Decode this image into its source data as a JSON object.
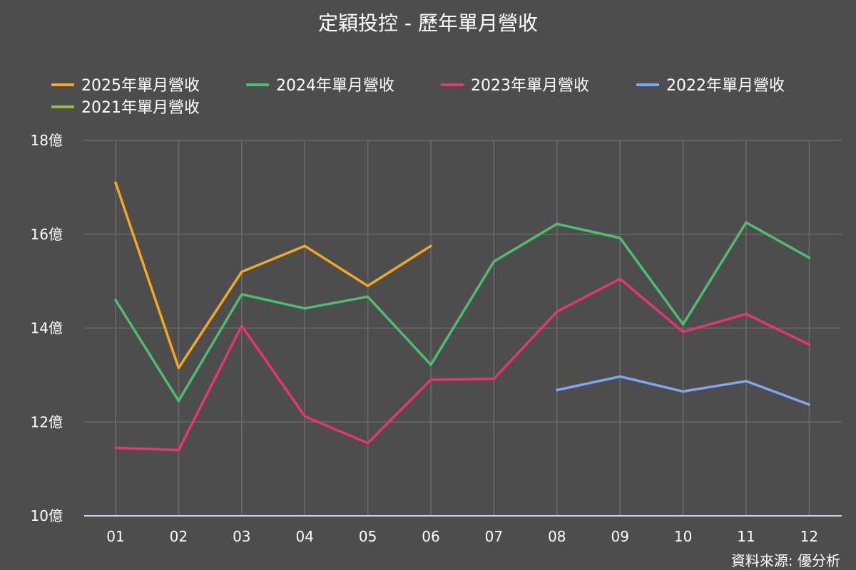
{
  "chart_data": {
    "type": "line",
    "title": "定穎投控 - 歷年單月營收",
    "source": "資料來源: 優分析",
    "categories": [
      "01",
      "02",
      "03",
      "04",
      "05",
      "06",
      "07",
      "08",
      "09",
      "10",
      "11",
      "12"
    ],
    "y_unit": "億",
    "ylim": [
      10,
      18
    ],
    "yticks": [
      10,
      12,
      14,
      16,
      18
    ],
    "grid": true,
    "legend_position": "top",
    "series": [
      {
        "name": "2025年單月營收",
        "color": "#f5a623",
        "values": [
          17.1,
          13.15,
          15.2,
          15.75,
          14.9,
          15.75,
          null,
          null,
          null,
          null,
          null,
          null
        ]
      },
      {
        "name": "2024年單月營收",
        "color": "#4dbe6e",
        "values": [
          14.6,
          12.45,
          14.72,
          14.42,
          14.67,
          13.22,
          15.42,
          16.22,
          15.92,
          14.08,
          16.25,
          15.5
        ]
      },
      {
        "name": "2023年單月營收",
        "color": "#e8356d",
        "values": [
          11.45,
          11.4,
          14.05,
          12.12,
          11.55,
          12.9,
          12.92,
          14.35,
          15.05,
          13.92,
          14.3,
          13.65
        ]
      },
      {
        "name": "2022年單月營收",
        "color": "#7ea6f2",
        "values": [
          null,
          null,
          null,
          null,
          null,
          null,
          null,
          12.68,
          12.97,
          12.65,
          12.87,
          12.37
        ]
      },
      {
        "name": "2021年單月營收",
        "color": "#9ac13a",
        "values": [
          null,
          null,
          null,
          null,
          null,
          null,
          null,
          null,
          null,
          null,
          null,
          null
        ]
      }
    ]
  }
}
